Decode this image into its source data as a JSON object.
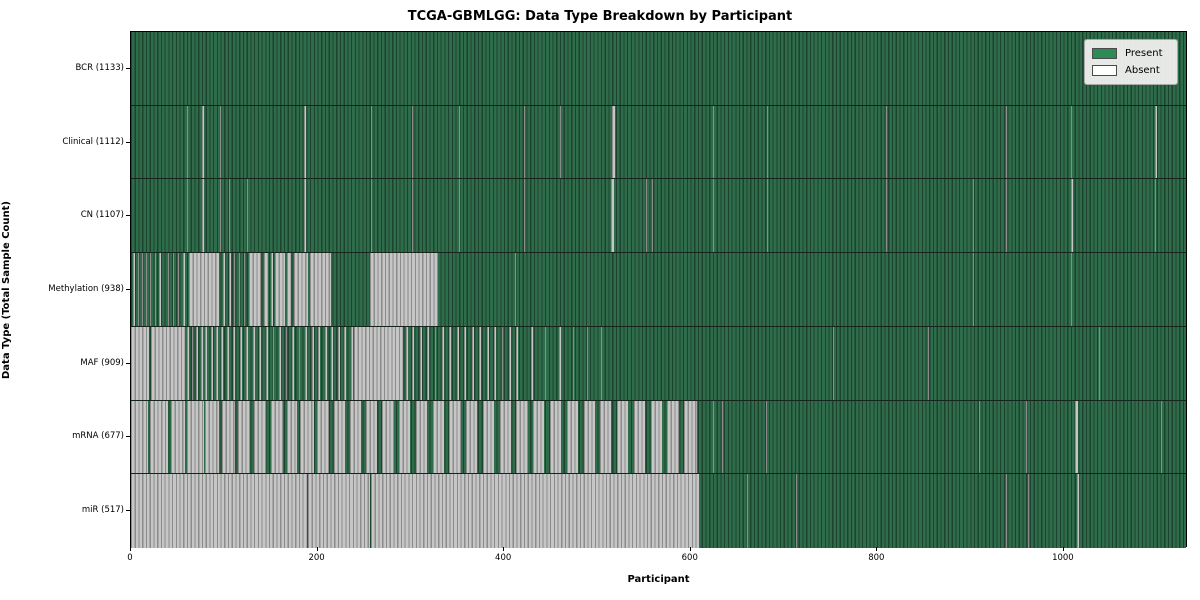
{
  "title": "TCGA-GBMLGG: Data Type Breakdown by Participant",
  "colors": {
    "present": "#2e8b57",
    "present_bar_fill": "#2f6c4b",
    "present_bar_edge": "#1c432e",
    "absent": "#ffffff",
    "absent_bar_fill": "#c6c6c6",
    "absent_bar_edge": "#8c8c8c",
    "plot_border": "#000000",
    "legend_background": "#f0f0ee"
  },
  "legend": {
    "present_label": "Present",
    "absent_label": "Absent"
  },
  "chart_data": {
    "type": "heatmap",
    "title": "TCGA-GBMLGG: Data Type Breakdown by Participant",
    "xlabel": "Participant",
    "ylabel": "Data Type (Total Sample Count)",
    "xlim": [
      0,
      1133
    ],
    "x_ticks": [
      0,
      200,
      400,
      600,
      800,
      1000
    ],
    "grid": false,
    "legend_position": "upper right",
    "legend_entries": [
      {
        "label": "Present",
        "color": "#2e8b57"
      },
      {
        "label": "Absent",
        "color": "#ffffff"
      }
    ],
    "total_participants": 1133,
    "rows": [
      {
        "name": "BCR",
        "label": "BCR (1133)",
        "present_count": 1133,
        "absent_ranges": []
      },
      {
        "name": "Clinical",
        "label": "Clinical (1112)",
        "present_count": 1112,
        "absent_ranges": [
          [
            60,
            61
          ],
          [
            76,
            78
          ],
          [
            96,
            97
          ],
          [
            186,
            188
          ],
          [
            258,
            259
          ],
          [
            302,
            303
          ],
          [
            352,
            353
          ],
          [
            422,
            423
          ],
          [
            461,
            462
          ],
          [
            517,
            520
          ],
          [
            625,
            626
          ],
          [
            683,
            684
          ],
          [
            811,
            812
          ],
          [
            940,
            941
          ],
          [
            1010,
            1011
          ],
          [
            1100,
            1102
          ]
        ]
      },
      {
        "name": "CN",
        "label": "CN (1107)",
        "present_count": 1107,
        "absent_ranges": [
          [
            60,
            61
          ],
          [
            76,
            78
          ],
          [
            96,
            97
          ],
          [
            105,
            106
          ],
          [
            125,
            126
          ],
          [
            186,
            188
          ],
          [
            258,
            259
          ],
          [
            302,
            303
          ],
          [
            352,
            353
          ],
          [
            422,
            423
          ],
          [
            515,
            519
          ],
          [
            553,
            554
          ],
          [
            560,
            561
          ],
          [
            625,
            626
          ],
          [
            683,
            684
          ],
          [
            811,
            812
          ],
          [
            904,
            905
          ],
          [
            940,
            941
          ],
          [
            1010,
            1012
          ],
          [
            1100,
            1101
          ]
        ]
      },
      {
        "name": "Methylation",
        "label": "Methylation (938)",
        "present_count": 938,
        "absent_ranges": [
          [
            2,
            4
          ],
          [
            7,
            9
          ],
          [
            12,
            13
          ],
          [
            16,
            17
          ],
          [
            20,
            22
          ],
          [
            26,
            27
          ],
          [
            30,
            32
          ],
          [
            36,
            37
          ],
          [
            40,
            41
          ],
          [
            45,
            46
          ],
          [
            50,
            52
          ],
          [
            56,
            58
          ],
          [
            62,
            95
          ],
          [
            99,
            101
          ],
          [
            105,
            107
          ],
          [
            111,
            112
          ],
          [
            116,
            117
          ],
          [
            121,
            122
          ],
          [
            127,
            140
          ],
          [
            143,
            147
          ],
          [
            150,
            152
          ],
          [
            155,
            165
          ],
          [
            168,
            172
          ],
          [
            175,
            190
          ],
          [
            192,
            215
          ],
          [
            257,
            330
          ],
          [
            412,
            413
          ],
          [
            904,
            905
          ],
          [
            1010,
            1011
          ]
        ]
      },
      {
        "name": "MAF",
        "label": "MAF (909)",
        "present_count": 909,
        "absent_ranges": [
          [
            0,
            19
          ],
          [
            22,
            58
          ],
          [
            60,
            62
          ],
          [
            65,
            67
          ],
          [
            70,
            72
          ],
          [
            75,
            77
          ],
          [
            80,
            82
          ],
          [
            86,
            88
          ],
          [
            91,
            93
          ],
          [
            97,
            99
          ],
          [
            103,
            105
          ],
          [
            110,
            112
          ],
          [
            117,
            119
          ],
          [
            124,
            126
          ],
          [
            131,
            133
          ],
          [
            138,
            140
          ],
          [
            145,
            147
          ],
          [
            152,
            154
          ],
          [
            159,
            161
          ],
          [
            166,
            168
          ],
          [
            173,
            175
          ],
          [
            180,
            182
          ],
          [
            187,
            189
          ],
          [
            194,
            196
          ],
          [
            201,
            203
          ],
          [
            208,
            210
          ],
          [
            215,
            217
          ],
          [
            222,
            224
          ],
          [
            229,
            231
          ],
          [
            236,
            238
          ],
          [
            240,
            292
          ],
          [
            295,
            297
          ],
          [
            302,
            304
          ],
          [
            310,
            312
          ],
          [
            318,
            320
          ],
          [
            326,
            328
          ],
          [
            334,
            336
          ],
          [
            342,
            344
          ],
          [
            350,
            352
          ],
          [
            358,
            360
          ],
          [
            366,
            368
          ],
          [
            374,
            376
          ],
          [
            382,
            384
          ],
          [
            390,
            392
          ],
          [
            398,
            400
          ],
          [
            406,
            408
          ],
          [
            414,
            416
          ],
          [
            430,
            432
          ],
          [
            445,
            446
          ],
          [
            460,
            462
          ],
          [
            475,
            476
          ],
          [
            490,
            491
          ],
          [
            505,
            506
          ],
          [
            754,
            755
          ],
          [
            856,
            857
          ],
          [
            1040,
            1041
          ]
        ]
      },
      {
        "name": "mRNA",
        "label": "mRNA (677)",
        "present_count": 677,
        "absent_ranges": [
          [
            0,
            18
          ],
          [
            20,
            40
          ],
          [
            43,
            58
          ],
          [
            60,
            78
          ],
          [
            80,
            95
          ],
          [
            98,
            112
          ],
          [
            115,
            128
          ],
          [
            132,
            145
          ],
          [
            150,
            163
          ],
          [
            167,
            178
          ],
          [
            182,
            196
          ],
          [
            200,
            213
          ],
          [
            218,
            230
          ],
          [
            235,
            247
          ],
          [
            252,
            264
          ],
          [
            270,
            282
          ],
          [
            288,
            300
          ],
          [
            306,
            318
          ],
          [
            324,
            336
          ],
          [
            342,
            354
          ],
          [
            360,
            372
          ],
          [
            378,
            390
          ],
          [
            396,
            408
          ],
          [
            414,
            426
          ],
          [
            432,
            444
          ],
          [
            450,
            462
          ],
          [
            468,
            480
          ],
          [
            486,
            498
          ],
          [
            504,
            516
          ],
          [
            522,
            534
          ],
          [
            540,
            552
          ],
          [
            558,
            570
          ],
          [
            576,
            588
          ],
          [
            594,
            608
          ],
          [
            625,
            626
          ],
          [
            635,
            636
          ],
          [
            682,
            683
          ],
          [
            911,
            912
          ],
          [
            961,
            962
          ],
          [
            1014,
            1017
          ],
          [
            1106,
            1107
          ]
        ]
      },
      {
        "name": "miR",
        "label": "miR (517)",
        "present_count": 517,
        "absent_ranges": [
          [
            0,
            189
          ],
          [
            190,
            257
          ],
          [
            258,
            610
          ],
          [
            662,
            663
          ],
          [
            714,
            715
          ],
          [
            940,
            941
          ],
          [
            963,
            964
          ],
          [
            995,
            996
          ],
          [
            1016,
            1018
          ]
        ]
      }
    ]
  }
}
